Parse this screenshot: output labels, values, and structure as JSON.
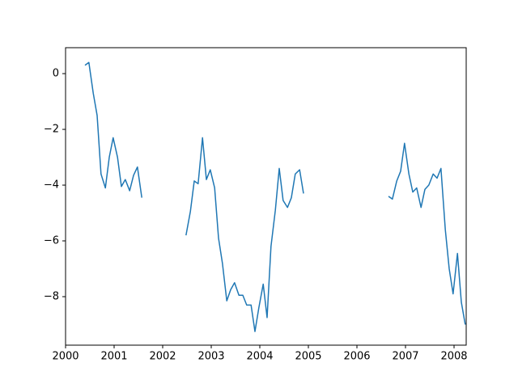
{
  "chart_data": {
    "type": "line",
    "x": [
      2000.4,
      2000.48,
      2000.57,
      2000.65,
      2000.73,
      2000.82,
      2000.9,
      2000.98,
      2001.07,
      2001.15,
      2001.23,
      2001.32,
      2001.4,
      2001.48,
      2001.57,
      2002.0,
      2002.48,
      2002.57,
      2002.65,
      2002.73,
      2002.82,
      2002.9,
      2002.98,
      2003.07,
      2003.15,
      2003.23,
      2003.32,
      2003.4,
      2003.48,
      2003.57,
      2003.65,
      2003.73,
      2003.82,
      2003.9,
      2003.98,
      2004.07,
      2004.15,
      2004.23,
      2004.32,
      2004.4,
      2004.48,
      2004.57,
      2004.65,
      2004.73,
      2004.82,
      2004.9,
      2005.5,
      2006.65,
      2006.73,
      2006.82,
      2006.9,
      2006.98,
      2007.07,
      2007.15,
      2007.23,
      2007.32,
      2007.4,
      2007.48,
      2007.57,
      2007.65,
      2007.73,
      2007.82,
      2007.9,
      2007.98,
      2008.07,
      2008.15,
      2008.23
    ],
    "series": [
      {
        "color": "#1f77b4",
        "values": [
          0.3,
          0.4,
          -0.7,
          -1.5,
          -3.6,
          -4.1,
          -3.0,
          -2.3,
          -3.0,
          -4.05,
          -3.8,
          -4.2,
          -3.65,
          -3.35,
          -4.45,
          null,
          -5.8,
          -4.95,
          -3.85,
          -3.95,
          -2.3,
          -3.8,
          -3.45,
          -4.1,
          -5.9,
          -6.8,
          -8.15,
          -7.75,
          -7.5,
          -7.95,
          -7.95,
          -8.3,
          -8.3,
          -9.25,
          -8.4,
          -7.55,
          -8.75,
          -6.2,
          -4.9,
          -3.4,
          -4.55,
          -4.8,
          -4.45,
          -3.6,
          -3.45,
          -4.3,
          null,
          -4.4,
          -4.5,
          -3.85,
          -3.5,
          -2.5,
          -3.6,
          -4.25,
          -4.1,
          -4.8,
          -4.15,
          -4.0,
          -3.6,
          -3.75,
          -3.4,
          -5.6,
          -7.0,
          -7.9,
          -6.45,
          -8.2,
          -9.0
        ]
      }
    ],
    "xlim": [
      2000,
      2008.25
    ],
    "ylim": [
      -9.74,
      0.93
    ],
    "xticks": [
      2000,
      2001,
      2002,
      2003,
      2004,
      2005,
      2006,
      2007,
      2008
    ],
    "yticks": [
      0,
      {
        "value": -2,
        "label": "−2"
      },
      {
        "value": -4,
        "label": "−4"
      },
      {
        "value": -6,
        "label": "−6"
      },
      {
        "value": -8,
        "label": "−8"
      }
    ],
    "grid": false
  }
}
